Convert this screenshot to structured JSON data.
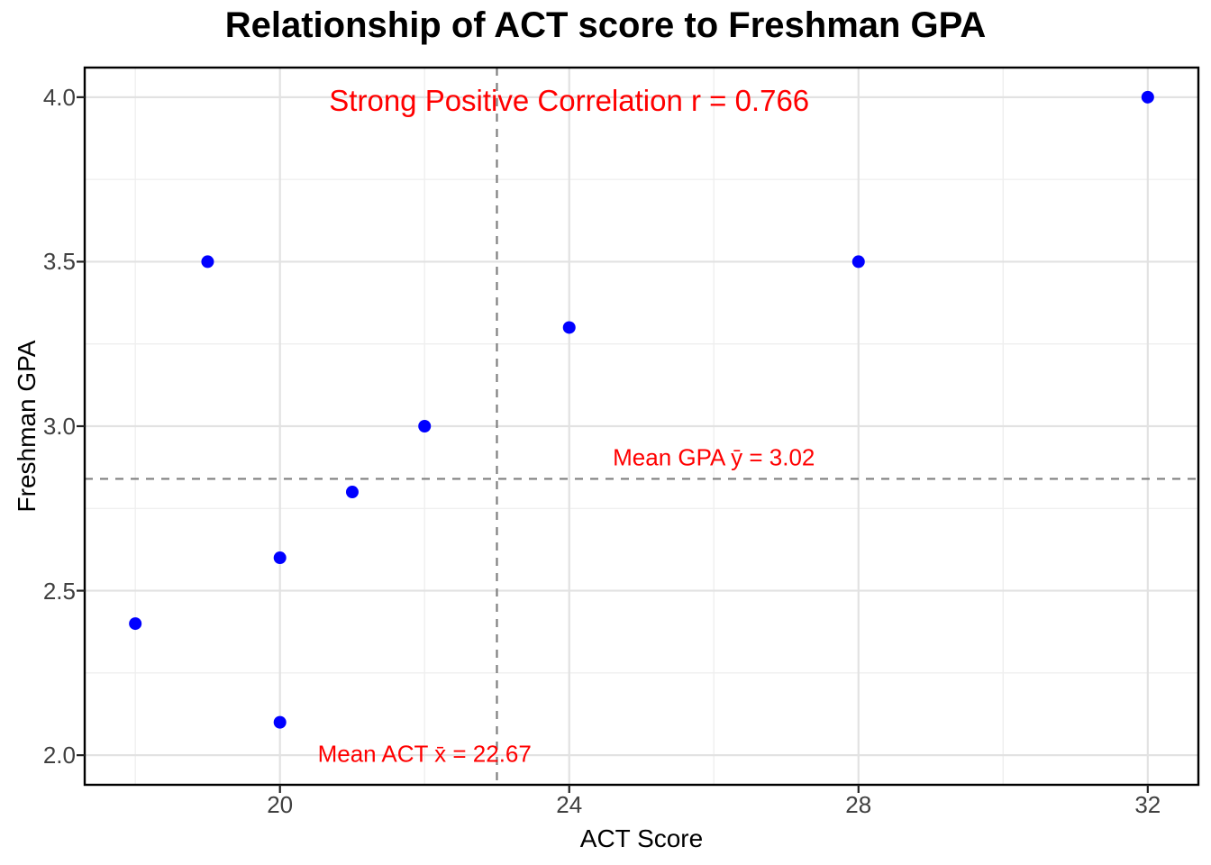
{
  "chart_data": {
    "type": "scatter",
    "title": "Relationship of ACT score to Freshman GPA",
    "xlabel": "ACT Score",
    "ylabel": "Freshman GPA",
    "points": [
      [
        18,
        2.4
      ],
      [
        19,
        3.5
      ],
      [
        20,
        2.1
      ],
      [
        20,
        2.6
      ],
      [
        21,
        2.8
      ],
      [
        22,
        3.0
      ],
      [
        24,
        3.3
      ],
      [
        28,
        3.5
      ],
      [
        32,
        4.0
      ]
    ],
    "point_color": "#0000FF",
    "xlim": [
      17.3,
      32.7
    ],
    "ylim": [
      1.91,
      4.09
    ],
    "x_ticks": [
      {
        "value": 20,
        "label": "20"
      },
      {
        "value": 24,
        "label": "24"
      },
      {
        "value": 28,
        "label": "28"
      },
      {
        "value": 32,
        "label": "32"
      }
    ],
    "y_ticks": [
      {
        "value": 4.0,
        "label": "4.0"
      },
      {
        "value": 3.5,
        "label": "3.5"
      },
      {
        "value": 3.0,
        "label": "3.0"
      },
      {
        "value": 2.5,
        "label": "2.5"
      },
      {
        "value": 2.0,
        "label": "2.0"
      }
    ],
    "x_minor_ticks": [
      18,
      22,
      26,
      30
    ],
    "y_minor_ticks": [
      2.25,
      2.75,
      3.25,
      3.75
    ],
    "grid": true,
    "legend": "none",
    "reference_lines": {
      "vertical_x": 23.0,
      "horizontal_y": 2.84,
      "style": "dashed",
      "color": "#7F7F7F"
    },
    "annotations": [
      {
        "role": "correlation-label",
        "text": "Strong Positive Correlation r = 0.766",
        "x": 24.0,
        "y": 3.99,
        "color": "#FF0000"
      },
      {
        "role": "mean-y-label",
        "text": "Mean GPA ȳ = 3.02",
        "x": 26.0,
        "y": 2.905,
        "color": "#FF0000"
      },
      {
        "role": "mean-x-label",
        "text": "Mean ACT x̄ = 22.67",
        "x": 22.0,
        "y": 2.003,
        "color": "#FF0000"
      }
    ],
    "colors": {
      "background": "#FFFFFF",
      "panel_border": "#000000",
      "grid_major": "#E2E2E2",
      "grid_minor": "#EFEFEF",
      "tick_mark": "#222222",
      "tick_label": "#404040",
      "axis_title": "#000000",
      "title": "#000000",
      "annotation": "#FF0000",
      "point": "#0000FF",
      "reference_line": "#7F7F7F"
    }
  }
}
